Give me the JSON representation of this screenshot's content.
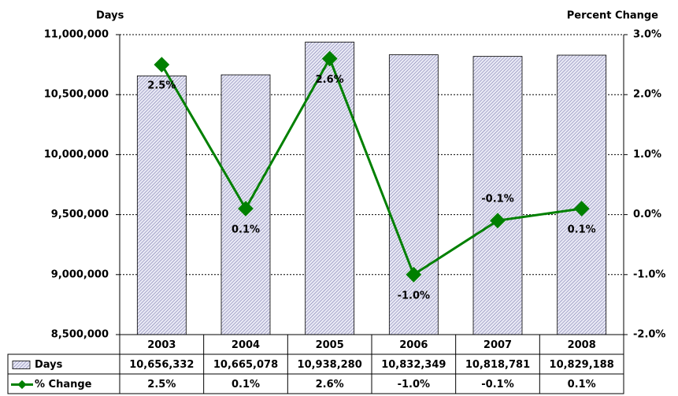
{
  "chart_data": {
    "type": "bar-line",
    "categories": [
      "2003",
      "2004",
      "2005",
      "2006",
      "2007",
      "2008"
    ],
    "ylabel": "Days",
    "y2label": "Percent Change",
    "ylim": [
      8500000,
      11000000
    ],
    "yticks": [
      {
        "value": 8500000,
        "label": "8,500,000"
      },
      {
        "value": 9000000,
        "label": "9,000,000"
      },
      {
        "value": 9500000,
        "label": "9,500,000"
      },
      {
        "value": 10000000,
        "label": "10,000,000"
      },
      {
        "value": 10500000,
        "label": "10,500,000"
      },
      {
        "value": 11000000,
        "label": "11,000,000"
      }
    ],
    "y2lim": [
      -2,
      3
    ],
    "y2ticks": [
      {
        "value": -2,
        "label": "-2.0%"
      },
      {
        "value": -1,
        "label": "-1.0%"
      },
      {
        "value": 0,
        "label": "0.0%"
      },
      {
        "value": 1,
        "label": "1.0%"
      },
      {
        "value": 2,
        "label": "2.0%"
      },
      {
        "value": 3,
        "label": "3.0%"
      }
    ],
    "grid": true,
    "series": [
      {
        "name": "Days",
        "type": "bar",
        "color": "#c8c8e6",
        "values": [
          10656332,
          10665078,
          10938280,
          10832349,
          10818781,
          10829188
        ],
        "value_labels": [
          "10,656,332",
          "10,665,078",
          "10,938,280",
          "10,832,349",
          "10,818,781",
          "10,829,188"
        ]
      },
      {
        "name": "% Change",
        "type": "line",
        "axis": "y2",
        "color": "#008000",
        "values": [
          2.5,
          0.1,
          2.6,
          -1.0,
          -0.1,
          0.1
        ],
        "value_labels": [
          "2.5%",
          "0.1%",
          "2.6%",
          "-1.0%",
          "-0.1%",
          "0.1%"
        ]
      }
    ]
  }
}
